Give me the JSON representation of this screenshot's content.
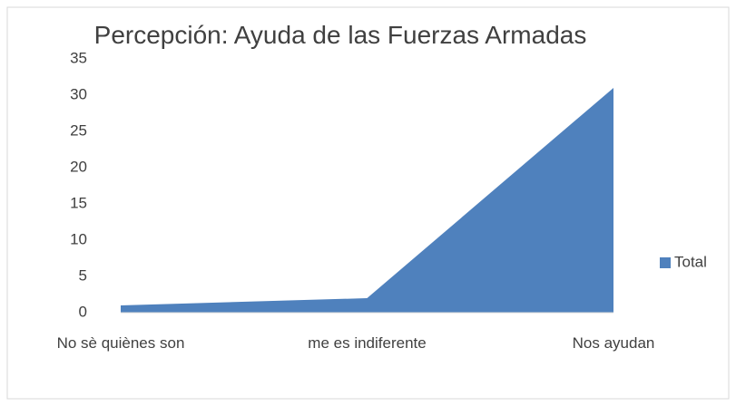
{
  "chart_data": {
    "type": "area",
    "title": "Percepción: Ayuda de las Fuerzas Armadas",
    "categories": [
      "No sè quiènes son",
      "me es indiferente",
      "Nos ayudan"
    ],
    "series": [
      {
        "name": "Total",
        "color": "#4f81bd",
        "values": [
          1,
          2,
          31
        ]
      }
    ],
    "ylim": [
      0,
      35
    ],
    "yticks": [
      0,
      5,
      10,
      15,
      20,
      25,
      30,
      35
    ],
    "grid": false,
    "legend": "right"
  }
}
